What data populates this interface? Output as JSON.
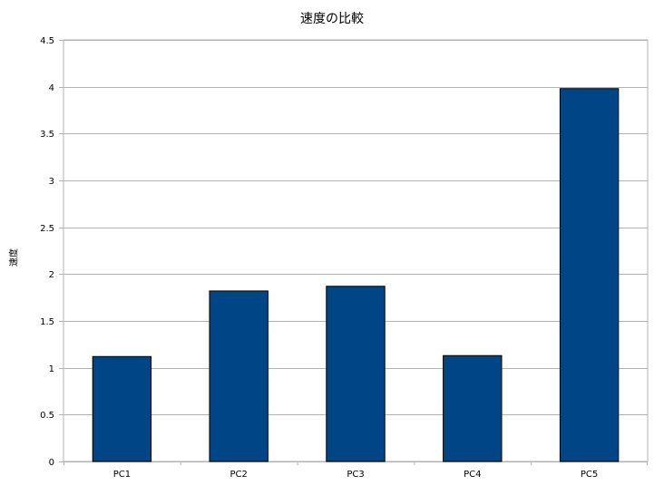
{
  "chart_data": {
    "type": "bar",
    "title": "速度の比較",
    "xlabel": "",
    "ylabel": "速度",
    "categories": [
      "PC1",
      "PC2",
      "PC3",
      "PC4",
      "PC5"
    ],
    "values": [
      1.12,
      1.82,
      1.87,
      1.13,
      3.98
    ],
    "ylim": [
      0,
      4.5
    ],
    "yticks": [
      "0",
      "0.5",
      "1",
      "1.5",
      "2",
      "2.5",
      "3",
      "3.5",
      "4",
      "4.5"
    ],
    "grid": true,
    "bar_color": "#004586",
    "grid_color": "#b3b3b3"
  }
}
